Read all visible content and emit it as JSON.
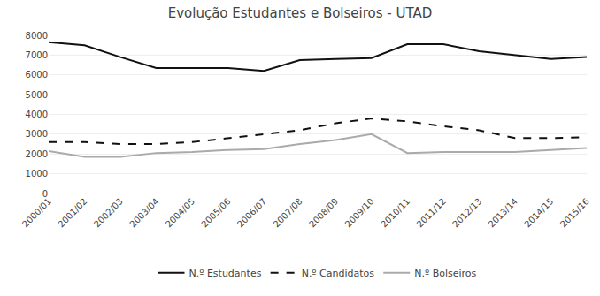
{
  "chart_data": {
    "type": "line",
    "title": "Evolução Estudantes e Bolseiros - UTAD",
    "categories": [
      "2000/01",
      "2001/02",
      "2002/03",
      "2003/04",
      "2004/05",
      "2005/06",
      "2006/07",
      "2007/08",
      "2008/09",
      "2009/10",
      "2010/11",
      "2011/12",
      "2012/13",
      "2013/14",
      "2014/15",
      "2015/16"
    ],
    "series": [
      {
        "name": "N.º Estudantes",
        "color": "#111111",
        "line_style": "solid",
        "values": [
          7650,
          7500,
          6900,
          6350,
          6350,
          6350,
          6200,
          6750,
          6800,
          6850,
          7550,
          7550,
          7200,
          7000,
          6800,
          6900
        ]
      },
      {
        "name": "N.º Candidatos",
        "color": "#111111",
        "line_style": "dashed",
        "values": [
          2600,
          2600,
          2500,
          2500,
          2600,
          2800,
          3000,
          3200,
          3550,
          3800,
          3650,
          3400,
          3200,
          2800,
          2800,
          2850
        ]
      },
      {
        "name": "N.º Bolseiros",
        "color": "#aaaaaa",
        "line_style": "solid",
        "values": [
          2150,
          1850,
          1850,
          2050,
          2100,
          2200,
          2250,
          2500,
          2700,
          3000,
          2050,
          2100,
          2100,
          2100,
          2200,
          2300
        ]
      }
    ],
    "ylim": [
      0,
      8000
    ],
    "yticks": [
      0,
      1000,
      2000,
      3000,
      4000,
      5000,
      6000,
      7000,
      8000
    ],
    "grid": true,
    "legend": "bottom"
  }
}
